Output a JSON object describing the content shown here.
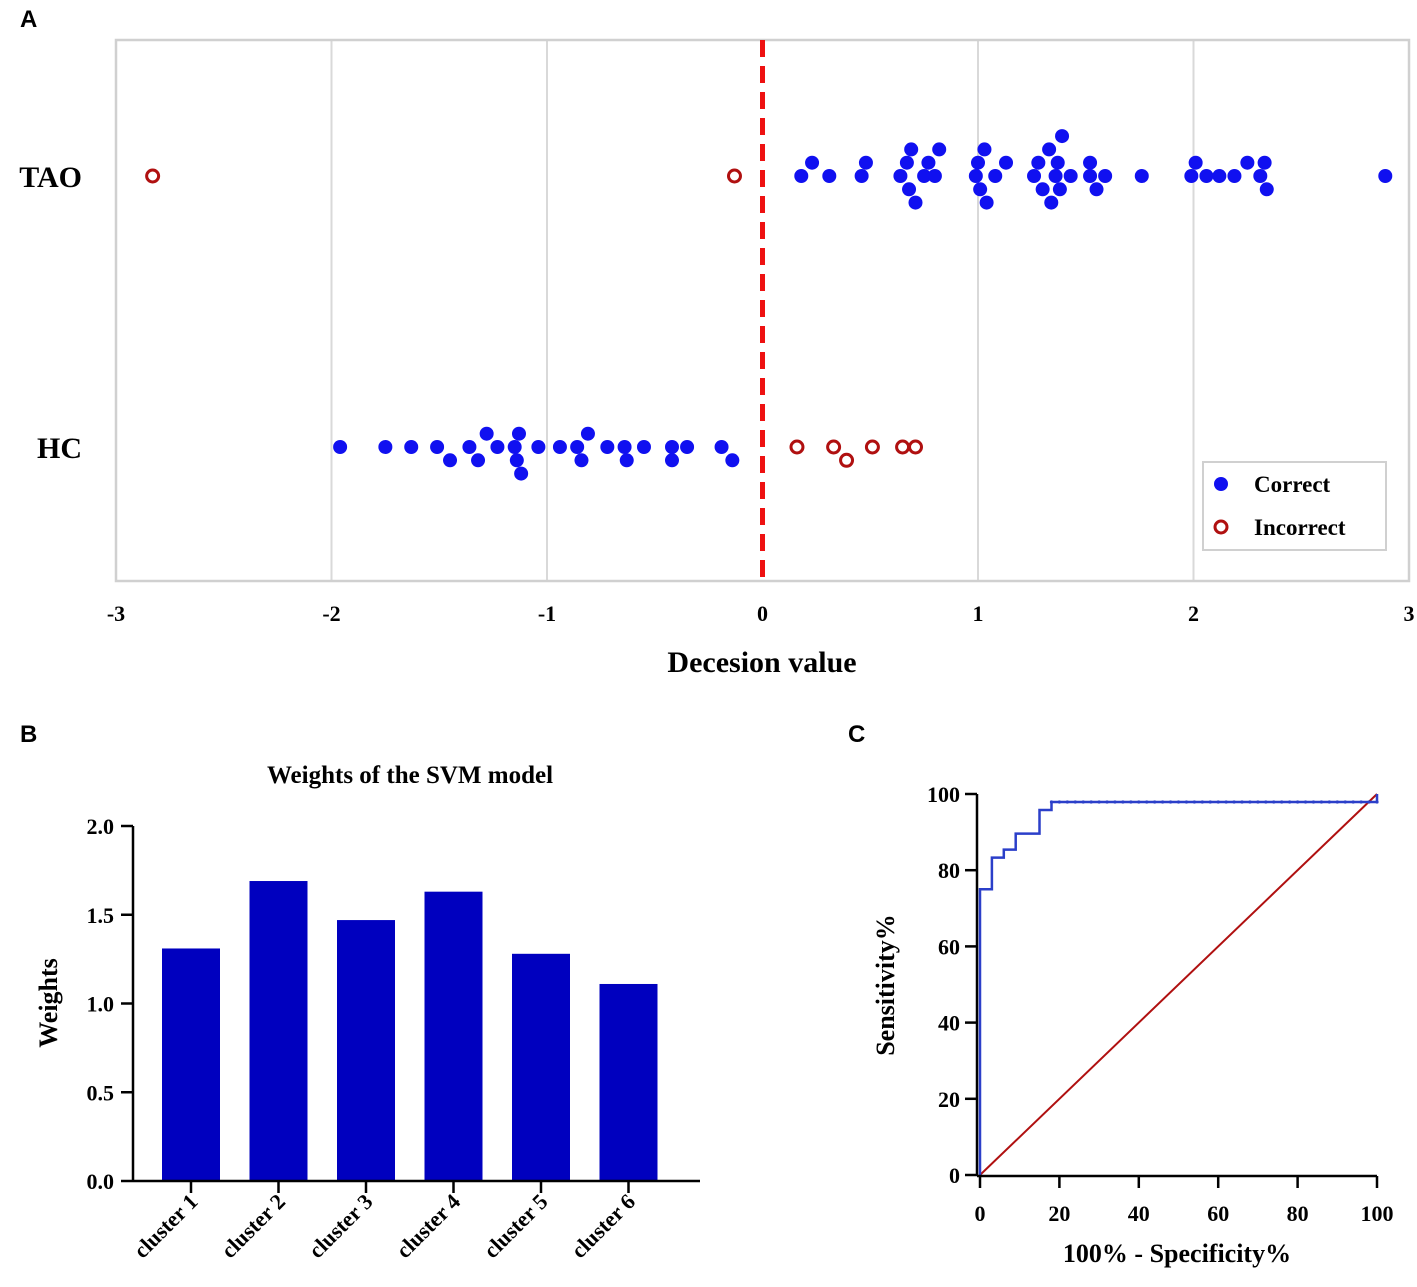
{
  "panels": {
    "A": {
      "letter": "A"
    },
    "B": {
      "letter": "B"
    },
    "C": {
      "letter": "C"
    }
  },
  "colors": {
    "correct": "#1010f0",
    "incorrect": "#b01010",
    "threshold": "#ee1111",
    "bar": "#0000bf",
    "roc": "#2b3fc9",
    "diagonal": "#b01010"
  },
  "chart_data": [
    {
      "type": "scatter",
      "panel": "A",
      "title": "",
      "xlabel": "Decesion value",
      "ylabel": "",
      "xlim": [
        -3,
        3
      ],
      "x_ticks": [
        "-3",
        "-2",
        "-1",
        "0",
        "1",
        "2",
        "3"
      ],
      "categories": [
        "TAO",
        "HC"
      ],
      "grid": true,
      "threshold": 0,
      "legend": {
        "placement": "bottom-right",
        "correct_label": "Correct",
        "incorrect_label": "Incorrect"
      },
      "series": [
        {
          "name": "Correct",
          "points": [
            {
              "cat": "TAO",
              "x": 0.18,
              "off": 0
            },
            {
              "cat": "TAO",
              "x": 0.23,
              "off": 1
            },
            {
              "cat": "TAO",
              "x": 0.31,
              "off": 0
            },
            {
              "cat": "TAO",
              "x": 0.46,
              "off": 0
            },
            {
              "cat": "TAO",
              "x": 0.48,
              "off": 1
            },
            {
              "cat": "TAO",
              "x": 0.64,
              "off": 0
            },
            {
              "cat": "TAO",
              "x": 0.67,
              "off": 1
            },
            {
              "cat": "TAO",
              "x": 0.68,
              "off": -1
            },
            {
              "cat": "TAO",
              "x": 0.69,
              "off": 2
            },
            {
              "cat": "TAO",
              "x": 0.71,
              "off": -2
            },
            {
              "cat": "TAO",
              "x": 0.75,
              "off": 0
            },
            {
              "cat": "TAO",
              "x": 0.77,
              "off": 1
            },
            {
              "cat": "TAO",
              "x": 0.8,
              "off": 0
            },
            {
              "cat": "TAO",
              "x": 0.82,
              "off": 2
            },
            {
              "cat": "TAO",
              "x": 0.99,
              "off": 0
            },
            {
              "cat": "TAO",
              "x": 1.0,
              "off": 1
            },
            {
              "cat": "TAO",
              "x": 1.01,
              "off": -1
            },
            {
              "cat": "TAO",
              "x": 1.03,
              "off": 2
            },
            {
              "cat": "TAO",
              "x": 1.04,
              "off": -2
            },
            {
              "cat": "TAO",
              "x": 1.08,
              "off": 0
            },
            {
              "cat": "TAO",
              "x": 1.13,
              "off": 1
            },
            {
              "cat": "TAO",
              "x": 1.26,
              "off": 0
            },
            {
              "cat": "TAO",
              "x": 1.28,
              "off": 1
            },
            {
              "cat": "TAO",
              "x": 1.3,
              "off": -1
            },
            {
              "cat": "TAO",
              "x": 1.33,
              "off": 2
            },
            {
              "cat": "TAO",
              "x": 1.34,
              "off": -2
            },
            {
              "cat": "TAO",
              "x": 1.36,
              "off": 0
            },
            {
              "cat": "TAO",
              "x": 1.37,
              "off": 1
            },
            {
              "cat": "TAO",
              "x": 1.38,
              "off": -1
            },
            {
              "cat": "TAO",
              "x": 1.39,
              "off": 3
            },
            {
              "cat": "TAO",
              "x": 1.43,
              "off": 0
            },
            {
              "cat": "TAO",
              "x": 1.52,
              "off": 1
            },
            {
              "cat": "TAO",
              "x": 1.52,
              "off": 0
            },
            {
              "cat": "TAO",
              "x": 1.55,
              "off": -1
            },
            {
              "cat": "TAO",
              "x": 1.59,
              "off": 0
            },
            {
              "cat": "TAO",
              "x": 1.76,
              "off": 0
            },
            {
              "cat": "TAO",
              "x": 1.99,
              "off": 0
            },
            {
              "cat": "TAO",
              "x": 2.01,
              "off": 1
            },
            {
              "cat": "TAO",
              "x": 2.06,
              "off": 0
            },
            {
              "cat": "TAO",
              "x": 2.12,
              "off": 0
            },
            {
              "cat": "TAO",
              "x": 2.19,
              "off": 0
            },
            {
              "cat": "TAO",
              "x": 2.25,
              "off": 1
            },
            {
              "cat": "TAO",
              "x": 2.31,
              "off": 0
            },
            {
              "cat": "TAO",
              "x": 2.33,
              "off": 1
            },
            {
              "cat": "TAO",
              "x": 2.34,
              "off": -1
            },
            {
              "cat": "TAO",
              "x": 2.89,
              "off": 0
            },
            {
              "cat": "HC",
              "x": -1.96,
              "off": 0
            },
            {
              "cat": "HC",
              "x": -1.75,
              "off": 0
            },
            {
              "cat": "HC",
              "x": -1.63,
              "off": 0
            },
            {
              "cat": "HC",
              "x": -1.51,
              "off": 0
            },
            {
              "cat": "HC",
              "x": -1.45,
              "off": -1
            },
            {
              "cat": "HC",
              "x": -1.36,
              "off": 0
            },
            {
              "cat": "HC",
              "x": -1.32,
              "off": -1
            },
            {
              "cat": "HC",
              "x": -1.28,
              "off": 1
            },
            {
              "cat": "HC",
              "x": -1.23,
              "off": 0
            },
            {
              "cat": "HC",
              "x": -1.15,
              "off": 0
            },
            {
              "cat": "HC",
              "x": -1.14,
              "off": -1
            },
            {
              "cat": "HC",
              "x": -1.13,
              "off": 1
            },
            {
              "cat": "HC",
              "x": -1.12,
              "off": -2
            },
            {
              "cat": "HC",
              "x": -1.04,
              "off": 0
            },
            {
              "cat": "HC",
              "x": -0.94,
              "off": 0
            },
            {
              "cat": "HC",
              "x": -0.86,
              "off": 0
            },
            {
              "cat": "HC",
              "x": -0.84,
              "off": -1
            },
            {
              "cat": "HC",
              "x": -0.81,
              "off": 1
            },
            {
              "cat": "HC",
              "x": -0.72,
              "off": 0
            },
            {
              "cat": "HC",
              "x": -0.64,
              "off": 0
            },
            {
              "cat": "HC",
              "x": -0.63,
              "off": -1
            },
            {
              "cat": "HC",
              "x": -0.55,
              "off": 0
            },
            {
              "cat": "HC",
              "x": -0.42,
              "off": 0
            },
            {
              "cat": "HC",
              "x": -0.42,
              "off": -1
            },
            {
              "cat": "HC",
              "x": -0.35,
              "off": 0
            },
            {
              "cat": "HC",
              "x": -0.19,
              "off": 0
            },
            {
              "cat": "HC",
              "x": -0.14,
              "off": -1
            }
          ]
        },
        {
          "name": "Incorrect",
          "points": [
            {
              "cat": "TAO",
              "x": -2.83,
              "off": 0
            },
            {
              "cat": "TAO",
              "x": -0.13,
              "off": 0
            },
            {
              "cat": "HC",
              "x": 0.16,
              "off": 0
            },
            {
              "cat": "HC",
              "x": 0.33,
              "off": 0
            },
            {
              "cat": "HC",
              "x": 0.39,
              "off": -1
            },
            {
              "cat": "HC",
              "x": 0.51,
              "off": 0
            },
            {
              "cat": "HC",
              "x": 0.65,
              "off": 0
            },
            {
              "cat": "HC",
              "x": 0.71,
              "off": 0
            }
          ]
        }
      ]
    },
    {
      "type": "bar",
      "panel": "B",
      "title": "Weights of the SVM model",
      "xlabel": "",
      "ylabel": "Weights",
      "ylim": [
        0,
        2.0
      ],
      "y_ticks": [
        "0.0",
        "0.5",
        "1.0",
        "1.5",
        "2.0"
      ],
      "categories": [
        "cluster 1",
        "cluster 2",
        "cluster 3",
        "cluster 4",
        "cluster 5",
        "cluster 6"
      ],
      "values": [
        1.31,
        1.69,
        1.47,
        1.63,
        1.28,
        1.11
      ]
    },
    {
      "type": "line",
      "panel": "C",
      "title": "",
      "xlabel": "100% - Specificity%",
      "ylabel": "Sensitivity%",
      "xlim": [
        0,
        100
      ],
      "ylim": [
        0,
        100
      ],
      "x_ticks": [
        "0",
        "20",
        "40",
        "60",
        "80",
        "100"
      ],
      "y_ticks": [
        "0",
        "20",
        "40",
        "60",
        "80",
        "100"
      ],
      "series": [
        {
          "name": "",
          "points": [
            [
              0,
              0
            ],
            [
              0,
              75
            ],
            [
              3,
              75
            ],
            [
              3,
              83.3
            ],
            [
              6,
              83.3
            ],
            [
              6,
              85.4
            ],
            [
              9,
              85.4
            ],
            [
              9,
              89.6
            ],
            [
              15,
              89.6
            ],
            [
              15,
              95.8
            ],
            [
              18,
              95.8
            ],
            [
              18,
              97.9
            ],
            [
              100,
              97.9
            ],
            [
              100,
              100
            ]
          ]
        },
        {
          "name": "",
          "points": [
            [
              0,
              0
            ],
            [
              100,
              100
            ]
          ]
        }
      ]
    }
  ]
}
